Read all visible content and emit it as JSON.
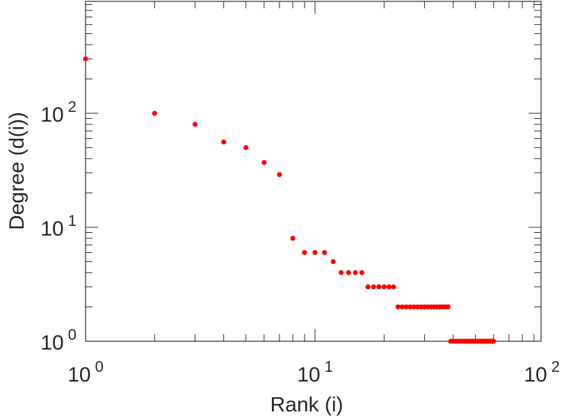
{
  "chart_data": {
    "type": "scatter",
    "title": "",
    "xlabel": "Rank (i)",
    "ylabel": "Degree (d(i))",
    "xscale": "log",
    "yscale": "log",
    "xlim": [
      1,
      100
    ],
    "ylim": [
      1,
      1000
    ],
    "grid": false,
    "legend": "none",
    "marker_color": "#ff0000",
    "x_ticks": [
      {
        "value": 1,
        "base": "10",
        "exp": "0"
      },
      {
        "value": 10,
        "base": "10",
        "exp": "1"
      },
      {
        "value": 100,
        "base": "10",
        "exp": "2"
      }
    ],
    "y_ticks": [
      {
        "value": 1,
        "base": "10",
        "exp": "0"
      },
      {
        "value": 10,
        "base": "10",
        "exp": "1"
      },
      {
        "value": 100,
        "base": "10",
        "exp": "2"
      }
    ],
    "points": [
      [
        1,
        300
      ],
      [
        2,
        100
      ],
      [
        3,
        80
      ],
      [
        4,
        56
      ],
      [
        5,
        50
      ],
      [
        6,
        37
      ],
      [
        7,
        29
      ],
      [
        8,
        8
      ],
      [
        9,
        6
      ],
      [
        10,
        6
      ],
      [
        11,
        6
      ],
      [
        12,
        5
      ],
      [
        13,
        4
      ],
      [
        14,
        4
      ],
      [
        15,
        4
      ],
      [
        16,
        4
      ],
      [
        17,
        3
      ],
      [
        18,
        3
      ],
      [
        19,
        3
      ],
      [
        20,
        3
      ],
      [
        21,
        3
      ],
      [
        22,
        3
      ],
      [
        23,
        2
      ],
      [
        24,
        2
      ],
      [
        25,
        2
      ],
      [
        26,
        2
      ],
      [
        27,
        2
      ],
      [
        28,
        2
      ],
      [
        29,
        2
      ],
      [
        30,
        2
      ],
      [
        31,
        2
      ],
      [
        32,
        2
      ],
      [
        33,
        2
      ],
      [
        34,
        2
      ],
      [
        35,
        2
      ],
      [
        36,
        2
      ],
      [
        37,
        2
      ],
      [
        38,
        2
      ],
      [
        39,
        1
      ],
      [
        40,
        1
      ],
      [
        41,
        1
      ],
      [
        42,
        1
      ],
      [
        43,
        1
      ],
      [
        44,
        1
      ],
      [
        45,
        1
      ],
      [
        46,
        1
      ],
      [
        47,
        1
      ],
      [
        48,
        1
      ],
      [
        49,
        1
      ],
      [
        50,
        1
      ],
      [
        51,
        1
      ],
      [
        52,
        1
      ],
      [
        53,
        1
      ],
      [
        54,
        1
      ],
      [
        55,
        1
      ],
      [
        56,
        1
      ],
      [
        57,
        1
      ],
      [
        58,
        1
      ],
      [
        59,
        1
      ],
      [
        60,
        1
      ]
    ]
  }
}
